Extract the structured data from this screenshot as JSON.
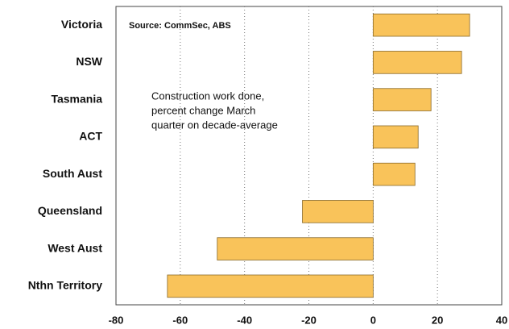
{
  "chart_data": {
    "type": "bar",
    "orientation": "horizontal",
    "source": "Source: CommSec, ABS",
    "annotation": [
      "Construction work done,",
      "percent change March",
      "quarter on decade-average"
    ],
    "categories": [
      "Victoria",
      "NSW",
      "Tasmania",
      "ACT",
      "South Aust",
      "Queensland",
      "West Aust",
      "Nthn Territory"
    ],
    "values": [
      30,
      27.5,
      18,
      14,
      13,
      -22,
      -48.5,
      -64
    ],
    "color": "#f9c35a",
    "xlim": [
      -80,
      40
    ],
    "xticks": [
      -80,
      -60,
      -40,
      -20,
      0,
      20,
      40
    ],
    "grid": true
  }
}
